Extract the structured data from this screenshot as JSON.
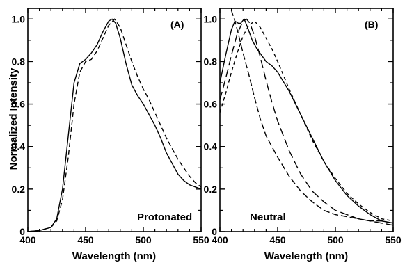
{
  "chart_data": [
    {
      "type": "line",
      "panel_label": "(A)",
      "annotation": "Protonated",
      "xlabel": "Wavelength (nm)",
      "ylabel": "Normalized Intensity",
      "xlim": [
        400,
        550
      ],
      "ylim": [
        0,
        1.05
      ],
      "x_ticks": [
        400,
        450,
        500,
        550
      ],
      "y_ticks": [
        0,
        0.2,
        0.4,
        0.6,
        0.8,
        1.0
      ],
      "y_tick_labels": [
        "0",
        "0.2",
        "0.4",
        "0.6",
        "0.8",
        "1.0"
      ],
      "grid": false,
      "series": [
        {
          "style": "solid",
          "x": [
            400,
            410,
            420,
            425,
            430,
            435,
            440,
            445,
            450,
            455,
            460,
            465,
            470,
            473,
            476,
            480,
            485,
            490,
            495,
            500,
            505,
            510,
            515,
            520,
            525,
            530,
            535,
            540,
            545,
            550
          ],
          "y": [
            0.0,
            0.005,
            0.02,
            0.06,
            0.2,
            0.45,
            0.7,
            0.79,
            0.81,
            0.84,
            0.88,
            0.94,
            0.99,
            1.0,
            0.98,
            0.91,
            0.79,
            0.69,
            0.64,
            0.6,
            0.55,
            0.5,
            0.44,
            0.37,
            0.32,
            0.27,
            0.24,
            0.22,
            0.21,
            0.2
          ]
        },
        {
          "style": "dashed",
          "x": [
            400,
            410,
            420,
            425,
            430,
            435,
            440,
            445,
            450,
            455,
            460,
            465,
            470,
            475,
            480,
            485,
            490,
            495,
            500,
            505,
            510,
            515,
            520,
            525,
            530,
            535,
            540,
            545,
            550
          ],
          "y": [
            0.0,
            0.005,
            0.02,
            0.05,
            0.15,
            0.35,
            0.6,
            0.75,
            0.8,
            0.81,
            0.85,
            0.91,
            0.97,
            1.0,
            0.96,
            0.88,
            0.8,
            0.73,
            0.67,
            0.62,
            0.56,
            0.5,
            0.44,
            0.39,
            0.34,
            0.3,
            0.26,
            0.23,
            0.21
          ]
        }
      ]
    },
    {
      "type": "line",
      "panel_label": "(B)",
      "annotation": "Neutral",
      "xlabel": "Wavelength (nm)",
      "ylabel": "",
      "xlim": [
        400,
        550
      ],
      "ylim": [
        0,
        1.05
      ],
      "x_ticks": [
        400,
        450,
        500,
        550
      ],
      "y_ticks": [
        0,
        0.2,
        0.4,
        0.6,
        0.8,
        1.0
      ],
      "y_tick_labels": [
        "0",
        "0.2",
        "0.4",
        "0.6",
        "0.8",
        "1.0"
      ],
      "grid": false,
      "series": [
        {
          "style": "solid",
          "x": [
            400,
            405,
            410,
            413,
            416,
            418,
            421,
            424,
            428,
            432,
            436,
            440,
            445,
            450,
            460,
            470,
            480,
            490,
            500,
            510,
            520,
            530,
            540,
            550
          ],
          "y": [
            0.7,
            0.83,
            0.95,
            0.99,
            0.98,
            0.98,
            1.0,
            0.96,
            0.9,
            0.86,
            0.83,
            0.8,
            0.78,
            0.75,
            0.66,
            0.55,
            0.44,
            0.33,
            0.24,
            0.17,
            0.12,
            0.08,
            0.05,
            0.04
          ]
        },
        {
          "style": "short-dash",
          "x": [
            400,
            405,
            410,
            415,
            420,
            425,
            430,
            435,
            440,
            445,
            450,
            460,
            470,
            480,
            490,
            500,
            510,
            520,
            530,
            540,
            550
          ],
          "y": [
            0.56,
            0.65,
            0.75,
            0.84,
            0.92,
            0.97,
            0.99,
            0.96,
            0.91,
            0.86,
            0.8,
            0.67,
            0.55,
            0.43,
            0.33,
            0.25,
            0.18,
            0.13,
            0.09,
            0.06,
            0.05
          ]
        },
        {
          "style": "long-dash",
          "x": [
            400,
            405,
            410,
            415,
            420,
            423,
            426,
            430,
            435,
            440,
            445,
            450,
            460,
            470,
            480,
            490,
            500,
            510,
            520,
            530,
            540,
            550
          ],
          "y": [
            0.62,
            0.72,
            0.83,
            0.93,
            0.99,
            1.0,
            0.98,
            0.92,
            0.82,
            0.71,
            0.61,
            0.52,
            0.38,
            0.27,
            0.19,
            0.14,
            0.1,
            0.08,
            0.06,
            0.05,
            0.04,
            0.03
          ]
        },
        {
          "style": "dash",
          "x": [
            406,
            410,
            413,
            416,
            420,
            425,
            430,
            435,
            440,
            445,
            450,
            460,
            470,
            480,
            490,
            500,
            510,
            520,
            530,
            540,
            550
          ],
          "y": [
            1.08,
            1.04,
            0.99,
            0.93,
            0.84,
            0.74,
            0.63,
            0.53,
            0.45,
            0.4,
            0.35,
            0.26,
            0.19,
            0.14,
            0.1,
            0.08,
            0.07,
            0.06,
            0.05,
            0.05,
            0.04
          ]
        }
      ]
    }
  ]
}
